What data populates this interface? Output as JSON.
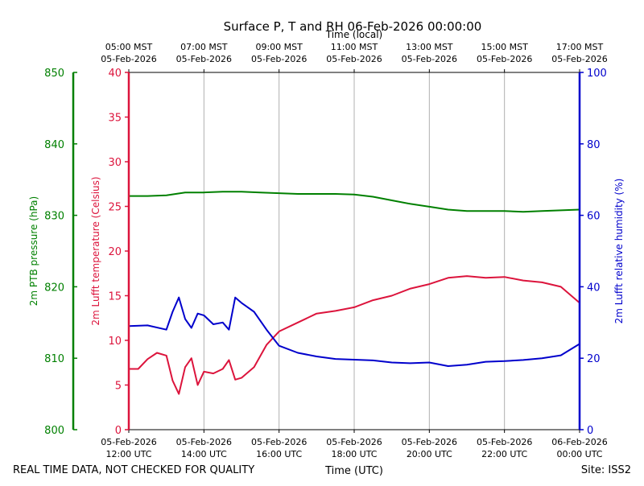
{
  "chart_data": {
    "type": "line",
    "title": "Surface P, T and RH 06-Feb-2026 00:00:00",
    "xlabel_bottom": "Time (UTC)",
    "xlabel_top": "Time (local)",
    "x_domain_utc": [
      "2026-02-05 12:00",
      "2026-02-06 00:00"
    ],
    "x_ticks_bottom": [
      {
        "t": "2026-02-05 12:00",
        "line1": "05-Feb-2026",
        "line2": "12:00 UTC"
      },
      {
        "t": "2026-02-05 14:00",
        "line1": "05-Feb-2026",
        "line2": "14:00 UTC"
      },
      {
        "t": "2026-02-05 16:00",
        "line1": "05-Feb-2026",
        "line2": "16:00 UTC"
      },
      {
        "t": "2026-02-05 18:00",
        "line1": "05-Feb-2026",
        "line2": "18:00 UTC"
      },
      {
        "t": "2026-02-05 20:00",
        "line1": "05-Feb-2026",
        "line2": "20:00 UTC"
      },
      {
        "t": "2026-02-05 22:00",
        "line1": "05-Feb-2026",
        "line2": "22:00 UTC"
      },
      {
        "t": "2026-02-06 00:00",
        "line1": "06-Feb-2026",
        "line2": "00:00 UTC"
      }
    ],
    "x_ticks_top": [
      {
        "t": "2026-02-05 12:00",
        "line1": "05:00 MST",
        "line2": "05-Feb-2026"
      },
      {
        "t": "2026-02-05 14:00",
        "line1": "07:00 MST",
        "line2": "05-Feb-2026"
      },
      {
        "t": "2026-02-05 16:00",
        "line1": "09:00 MST",
        "line2": "05-Feb-2026"
      },
      {
        "t": "2026-02-05 18:00",
        "line1": "11:00 MST",
        "line2": "05-Feb-2026"
      },
      {
        "t": "2026-02-05 20:00",
        "line1": "13:00 MST",
        "line2": "05-Feb-2026"
      },
      {
        "t": "2026-02-05 22:00",
        "line1": "15:00 MST",
        "line2": "05-Feb-2026"
      },
      {
        "t": "2026-02-06 00:00",
        "line1": "17:00 MST",
        "line2": "05-Feb-2026"
      }
    ],
    "grid": "vertical",
    "axes": {
      "pressure": {
        "label": "2m PTB pressure (hPa)",
        "ylim": [
          800,
          850
        ],
        "ticks": [
          "800",
          "810",
          "820",
          "830",
          "840",
          "850"
        ],
        "color": "#008000"
      },
      "temperature": {
        "label": "2m Lufft temperature (Celsius)",
        "ylim": [
          0,
          40
        ],
        "ticks": [
          "0",
          "5",
          "10",
          "15",
          "20",
          "25",
          "30",
          "35",
          "40"
        ],
        "color": "#dc143c"
      },
      "humidity": {
        "label": "2m Lufft relative humidity (%)",
        "ylim": [
          0,
          100
        ],
        "ticks": [
          "0",
          "20",
          "40",
          "60",
          "80",
          "100"
        ],
        "color": "#0000cc"
      }
    },
    "series": [
      {
        "axis": "pressure",
        "color": "#008000",
        "points": [
          [
            "2026-02-05 12:00",
            832.7
          ],
          [
            "2026-02-05 12:30",
            832.7
          ],
          [
            "2026-02-05 13:00",
            832.8
          ],
          [
            "2026-02-05 13:30",
            833.2
          ],
          [
            "2026-02-05 14:00",
            833.2
          ],
          [
            "2026-02-05 14:30",
            833.3
          ],
          [
            "2026-02-05 15:00",
            833.3
          ],
          [
            "2026-02-05 15:30",
            833.2
          ],
          [
            "2026-02-05 16:00",
            833.1
          ],
          [
            "2026-02-05 16:30",
            833.0
          ],
          [
            "2026-02-05 17:00",
            833.0
          ],
          [
            "2026-02-05 17:30",
            833.0
          ],
          [
            "2026-02-05 18:00",
            832.9
          ],
          [
            "2026-02-05 18:30",
            832.6
          ],
          [
            "2026-02-05 19:00",
            832.1
          ],
          [
            "2026-02-05 19:30",
            831.6
          ],
          [
            "2026-02-05 20:00",
            831.2
          ],
          [
            "2026-02-05 20:30",
            830.8
          ],
          [
            "2026-02-05 21:00",
            830.6
          ],
          [
            "2026-02-05 21:30",
            830.6
          ],
          [
            "2026-02-05 22:00",
            830.6
          ],
          [
            "2026-02-05 22:30",
            830.5
          ],
          [
            "2026-02-05 23:00",
            830.6
          ],
          [
            "2026-02-05 23:30",
            830.7
          ],
          [
            "2026-02-06 00:00",
            830.8
          ]
        ]
      },
      {
        "axis": "temperature",
        "color": "#dc143c",
        "points": [
          [
            "2026-02-05 12:00",
            6.8
          ],
          [
            "2026-02-05 12:15",
            6.8
          ],
          [
            "2026-02-05 12:30",
            7.9
          ],
          [
            "2026-02-05 12:45",
            8.6
          ],
          [
            "2026-02-05 13:00",
            8.3
          ],
          [
            "2026-02-05 13:10",
            5.5
          ],
          [
            "2026-02-05 13:20",
            4.0
          ],
          [
            "2026-02-05 13:30",
            7.0
          ],
          [
            "2026-02-05 13:40",
            8.0
          ],
          [
            "2026-02-05 13:50",
            5.0
          ],
          [
            "2026-02-05 14:00",
            6.5
          ],
          [
            "2026-02-05 14:15",
            6.3
          ],
          [
            "2026-02-05 14:30",
            6.8
          ],
          [
            "2026-02-05 14:40",
            7.8
          ],
          [
            "2026-02-05 14:50",
            5.6
          ],
          [
            "2026-02-05 15:00",
            5.8
          ],
          [
            "2026-02-05 15:20",
            7.0
          ],
          [
            "2026-02-05 15:40",
            9.5
          ],
          [
            "2026-02-05 16:00",
            11.0
          ],
          [
            "2026-02-05 16:30",
            12.0
          ],
          [
            "2026-02-05 17:00",
            13.0
          ],
          [
            "2026-02-05 17:30",
            13.3
          ],
          [
            "2026-02-05 18:00",
            13.7
          ],
          [
            "2026-02-05 18:30",
            14.5
          ],
          [
            "2026-02-05 19:00",
            15.0
          ],
          [
            "2026-02-05 19:30",
            15.8
          ],
          [
            "2026-02-05 20:00",
            16.3
          ],
          [
            "2026-02-05 20:30",
            17.0
          ],
          [
            "2026-02-05 21:00",
            17.2
          ],
          [
            "2026-02-05 21:30",
            17.0
          ],
          [
            "2026-02-05 22:00",
            17.1
          ],
          [
            "2026-02-05 22:30",
            16.7
          ],
          [
            "2026-02-05 23:00",
            16.5
          ],
          [
            "2026-02-05 23:30",
            16.0
          ],
          [
            "2026-02-06 00:00",
            14.2
          ]
        ]
      },
      {
        "axis": "humidity",
        "color": "#0000cc",
        "points": [
          [
            "2026-02-05 12:00",
            29.0
          ],
          [
            "2026-02-05 12:30",
            29.2
          ],
          [
            "2026-02-05 13:00",
            28.0
          ],
          [
            "2026-02-05 13:10",
            33.0
          ],
          [
            "2026-02-05 13:20",
            37.0
          ],
          [
            "2026-02-05 13:30",
            31.0
          ],
          [
            "2026-02-05 13:40",
            28.5
          ],
          [
            "2026-02-05 13:50",
            32.5
          ],
          [
            "2026-02-05 14:00",
            32.0
          ],
          [
            "2026-02-05 14:15",
            29.5
          ],
          [
            "2026-02-05 14:30",
            30.0
          ],
          [
            "2026-02-05 14:40",
            28.0
          ],
          [
            "2026-02-05 14:50",
            37.0
          ],
          [
            "2026-02-05 15:00",
            35.5
          ],
          [
            "2026-02-05 15:20",
            33.0
          ],
          [
            "2026-02-05 15:40",
            28.0
          ],
          [
            "2026-02-05 16:00",
            23.5
          ],
          [
            "2026-02-05 16:30",
            21.5
          ],
          [
            "2026-02-05 17:00",
            20.5
          ],
          [
            "2026-02-05 17:30",
            19.8
          ],
          [
            "2026-02-05 18:00",
            19.6
          ],
          [
            "2026-02-05 18:30",
            19.4
          ],
          [
            "2026-02-05 19:00",
            18.8
          ],
          [
            "2026-02-05 19:30",
            18.6
          ],
          [
            "2026-02-05 20:00",
            18.8
          ],
          [
            "2026-02-05 20:30",
            17.8
          ],
          [
            "2026-02-05 21:00",
            18.2
          ],
          [
            "2026-02-05 21:30",
            19.0
          ],
          [
            "2026-02-05 22:00",
            19.2
          ],
          [
            "2026-02-05 22:30",
            19.5
          ],
          [
            "2026-02-05 23:00",
            20.0
          ],
          [
            "2026-02-05 23:30",
            20.8
          ],
          [
            "2026-02-06 00:00",
            24.0
          ]
        ]
      }
    ]
  },
  "footer": {
    "left": "REAL TIME DATA, NOT CHECKED FOR QUALITY",
    "right": "Site: ISS2"
  }
}
